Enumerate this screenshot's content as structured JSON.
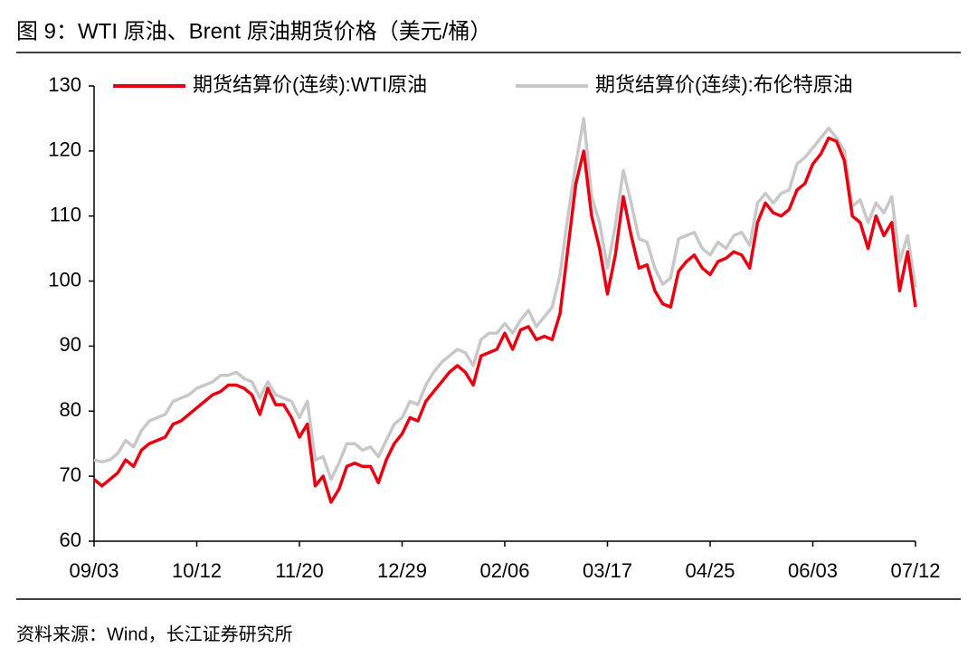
{
  "chart_data": {
    "type": "line",
    "title": "图 9：WTI 原油、Brent 原油期货价格（美元/桶）",
    "source": "资料来源：Wind，长江证券研究所",
    "categories": [
      "09/03",
      null,
      null,
      null,
      null,
      null,
      null,
      null,
      null,
      null,
      null,
      null,
      null,
      "10/12",
      null,
      null,
      null,
      null,
      null,
      null,
      null,
      null,
      null,
      null,
      null,
      null,
      "11/20",
      null,
      null,
      null,
      null,
      null,
      null,
      null,
      null,
      null,
      null,
      null,
      null,
      "12/29",
      null,
      null,
      null,
      null,
      null,
      null,
      null,
      null,
      null,
      null,
      null,
      null,
      "02/06",
      null,
      null,
      null,
      null,
      null,
      null,
      null,
      null,
      null,
      null,
      null,
      null,
      "03/17",
      null,
      null,
      null,
      null,
      null,
      null,
      null,
      null,
      null,
      null,
      null,
      null,
      "04/25",
      null,
      null,
      null,
      null,
      null,
      null,
      null,
      null,
      null,
      null,
      null,
      null,
      "06/03",
      null,
      null,
      null,
      null,
      null,
      null,
      null,
      null,
      null,
      null,
      null,
      null,
      "07/12"
    ],
    "series": [
      {
        "name": "期货结算价(连续):WTI原油",
        "color": "#e60012",
        "values": [
          69.5,
          68.5,
          69.5,
          70.5,
          72.5,
          71.5,
          74,
          75,
          75.5,
          76,
          78,
          78.5,
          79.5,
          80.5,
          81.5,
          82.5,
          83,
          84,
          84,
          83.5,
          82.5,
          79.5,
          83.5,
          81,
          81,
          79,
          76,
          78,
          68.5,
          70,
          66,
          68,
          71.5,
          72,
          71.5,
          71.5,
          69,
          72.5,
          75,
          76.5,
          79,
          78.5,
          81.5,
          83,
          84.5,
          86,
          87,
          86,
          84,
          88.5,
          89,
          89.5,
          92,
          89.5,
          92.5,
          93,
          91,
          91.5,
          91,
          95,
          105,
          115,
          120,
          110,
          105,
          98,
          104,
          113,
          107,
          102,
          102.5,
          98.5,
          96.5,
          96,
          101.5,
          103,
          104,
          102,
          101,
          103,
          103.5,
          104.5,
          104,
          102,
          109,
          112,
          110.5,
          110,
          111,
          114,
          115,
          118,
          119.5,
          122,
          121.5,
          118.5,
          110,
          109,
          105,
          110,
          107,
          109,
          98.5,
          104.5,
          96
        ]
      },
      {
        "name": "期货结算价(连续):布伦特原油",
        "color": "#c8c8c8",
        "values": [
          72.5,
          72.2,
          72.5,
          73.5,
          75.5,
          74.5,
          77,
          78.5,
          79,
          79.5,
          81.5,
          82,
          82.5,
          83.5,
          84,
          84.5,
          85.5,
          85.5,
          86,
          85,
          84.5,
          82,
          84.5,
          82.5,
          82,
          81.5,
          79,
          81.5,
          72.5,
          73,
          69.5,
          72,
          75,
          75,
          74,
          74.5,
          73,
          75.5,
          78,
          79,
          81.5,
          81,
          84,
          86,
          87.5,
          88.5,
          89.5,
          89,
          87,
          91,
          92,
          92,
          93.5,
          92,
          94,
          95.5,
          93,
          94.5,
          96,
          101,
          110,
          118,
          125,
          113,
          109,
          102,
          108.5,
          117,
          112,
          106.5,
          106,
          102,
          99.5,
          100.5,
          106.5,
          107,
          107.5,
          105,
          104,
          106,
          105,
          107,
          107.5,
          105.5,
          112,
          113.5,
          112,
          113.5,
          114,
          118,
          119,
          120.5,
          122,
          123.5,
          122,
          120,
          111.5,
          112.5,
          109,
          112,
          110.5,
          113,
          103,
          107,
          99
        ]
      }
    ],
    "ylim": [
      60,
      130
    ],
    "yticks": [
      60,
      70,
      80,
      90,
      100,
      110,
      120,
      130
    ],
    "legend": "top",
    "grid": false
  }
}
